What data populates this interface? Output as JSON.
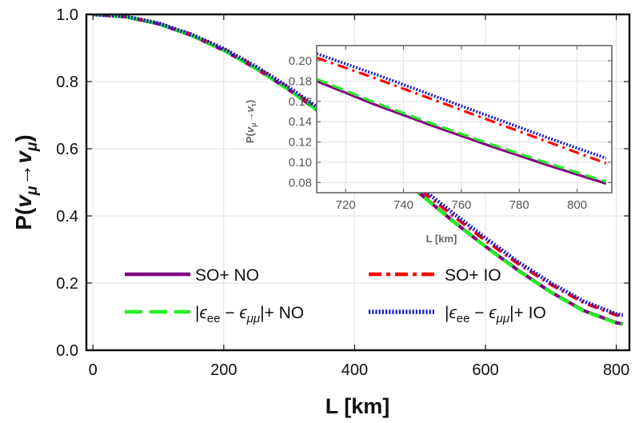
{
  "chart_data": [
    {
      "type": "line",
      "xlabel": "L [km]",
      "ylabel": "P(v_μ→v_μ)",
      "ylabel_parts": {
        "main": "P(",
        "nu1": "v",
        "sub1": "μ",
        "arrow": "→",
        "nu2": "v",
        "sub2": "μ",
        "close": ")"
      },
      "xlim": [
        -10,
        820
      ],
      "ylim": [
        0,
        1
      ],
      "xticks": [
        0,
        200,
        400,
        600,
        800
      ],
      "xtick_labels": [
        "0",
        "200",
        "400",
        "600",
        "800"
      ],
      "yticks": [
        0,
        0.2,
        0.4,
        0.6,
        0.8,
        1.0
      ],
      "ytick_labels": [
        "0.0",
        "0.2",
        "0.4",
        "0.6",
        "0.8",
        "1.0"
      ],
      "grid": true,
      "legend_placement": "bottom",
      "x": [
        0,
        50,
        100,
        150,
        200,
        250,
        300,
        350,
        400,
        450,
        500,
        550,
        600,
        650,
        700,
        750,
        800,
        810
      ],
      "series": [
        {
          "key": "so_no",
          "name": "SO+ NO",
          "color": "#800080",
          "style": "solid",
          "values": [
            1.0,
            0.993,
            0.972,
            0.938,
            0.893,
            0.838,
            0.775,
            0.705,
            0.629,
            0.548,
            0.466,
            0.385,
            0.309,
            0.238,
            0.173,
            0.118,
            0.082,
            0.078
          ]
        },
        {
          "key": "so_io",
          "name": "SO+ IO",
          "color": "#ff0000",
          "style": "dashdot",
          "values": [
            1.0,
            0.993,
            0.973,
            0.94,
            0.896,
            0.842,
            0.779,
            0.71,
            0.636,
            0.558,
            0.479,
            0.401,
            0.327,
            0.258,
            0.196,
            0.142,
            0.105,
            0.1
          ]
        },
        {
          "key": "eps_no",
          "name": "NO",
          "color": "#22ee22",
          "style": "dashed",
          "values": [
            1.0,
            0.993,
            0.972,
            0.938,
            0.893,
            0.838,
            0.775,
            0.704,
            0.628,
            0.547,
            0.465,
            0.384,
            0.308,
            0.237,
            0.172,
            0.117,
            0.081,
            0.077
          ]
        },
        {
          "key": "eps_io",
          "name": "IO",
          "color": "#1a1acc",
          "style": "dotted",
          "values": [
            1.0,
            0.994,
            0.974,
            0.941,
            0.898,
            0.844,
            0.782,
            0.714,
            0.641,
            0.564,
            0.486,
            0.409,
            0.334,
            0.263,
            0.2,
            0.146,
            0.108,
            0.104
          ]
        }
      ],
      "legend_math": {
        "bar": "|",
        "eps": "ϵ",
        "sub_a": "ee",
        "minus": "−",
        "sub_b": "μμ",
        "plus": "|+"
      }
    },
    {
      "type": "line",
      "inset": true,
      "xlabel": "L [km]",
      "ylabel": "P(v_μ→v_τ)",
      "ylabel_parts": {
        "main": "P(",
        "nu1": "v",
        "sub1": "μ",
        "arrow": "→",
        "nu2": "v",
        "sub2": "τ",
        "close": ")"
      },
      "xlim": [
        710,
        812
      ],
      "ylim": [
        0.07,
        0.215
      ],
      "xticks": [
        720,
        740,
        760,
        780,
        800
      ],
      "xtick_labels": [
        "720",
        "740",
        "760",
        "780",
        "800"
      ],
      "yticks": [
        0.08,
        0.1,
        0.12,
        0.14,
        0.16,
        0.18,
        0.2
      ],
      "ytick_labels": [
        "0.08",
        "0.10",
        "0.12",
        "0.14",
        "0.16",
        "0.18",
        "0.20"
      ],
      "grid": true,
      "x": [
        710,
        730,
        750,
        770,
        790,
        810
      ],
      "series": [
        {
          "key": "so_no",
          "color": "#800080",
          "style": "solid",
          "values": [
            0.18,
            0.157,
            0.136,
            0.116,
            0.097,
            0.079
          ]
        },
        {
          "key": "so_io",
          "color": "#ff0000",
          "style": "dashdot",
          "values": [
            0.203,
            0.183,
            0.162,
            0.141,
            0.12,
            0.099
          ]
        },
        {
          "key": "eps_no",
          "color": "#22ee22",
          "style": "dashed",
          "values": [
            0.182,
            0.159,
            0.138,
            0.118,
            0.099,
            0.081
          ]
        },
        {
          "key": "eps_io",
          "color": "#1a1acc",
          "style": "dotted",
          "values": [
            0.207,
            0.187,
            0.166,
            0.145,
            0.124,
            0.104
          ]
        }
      ]
    }
  ]
}
